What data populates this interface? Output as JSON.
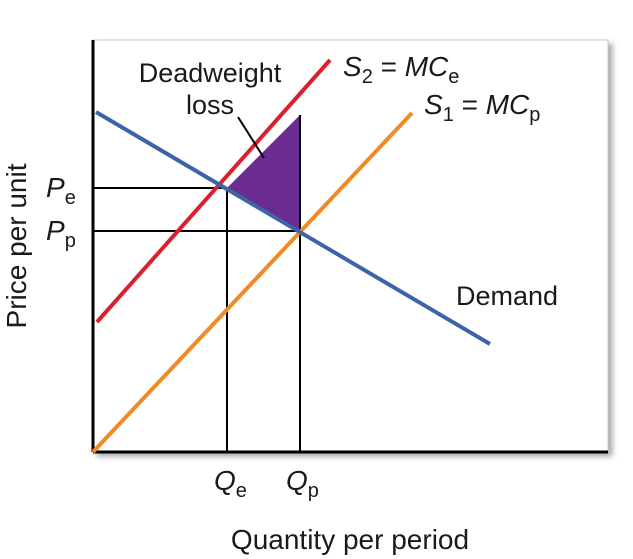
{
  "axes": {
    "y_label": "Price per unit",
    "x_label": "Quantity per period"
  },
  "curves": {
    "demand": {
      "label": "Demand",
      "color": "#3d64a8"
    },
    "supply_external": {
      "label_s": "S",
      "label_sub": "2",
      "label_eq": " = ",
      "label_mc": "MC",
      "label_mc_sub": "e",
      "color": "#d9202d"
    },
    "supply_private": {
      "label_s": "S",
      "label_sub": "1",
      "label_eq": " = ",
      "label_mc": "MC",
      "label_mc_sub": "p",
      "color": "#f08a24"
    }
  },
  "deadweight": {
    "label_line1": "Deadweight",
    "label_line2": "loss",
    "color": "#6a2c91"
  },
  "ticks": {
    "pe": {
      "main": "P",
      "sub": "e"
    },
    "pp": {
      "main": "P",
      "sub": "p"
    },
    "qe": {
      "main": "Q",
      "sub": "e"
    },
    "qp": {
      "main": "Q",
      "sub": "p"
    }
  }
}
